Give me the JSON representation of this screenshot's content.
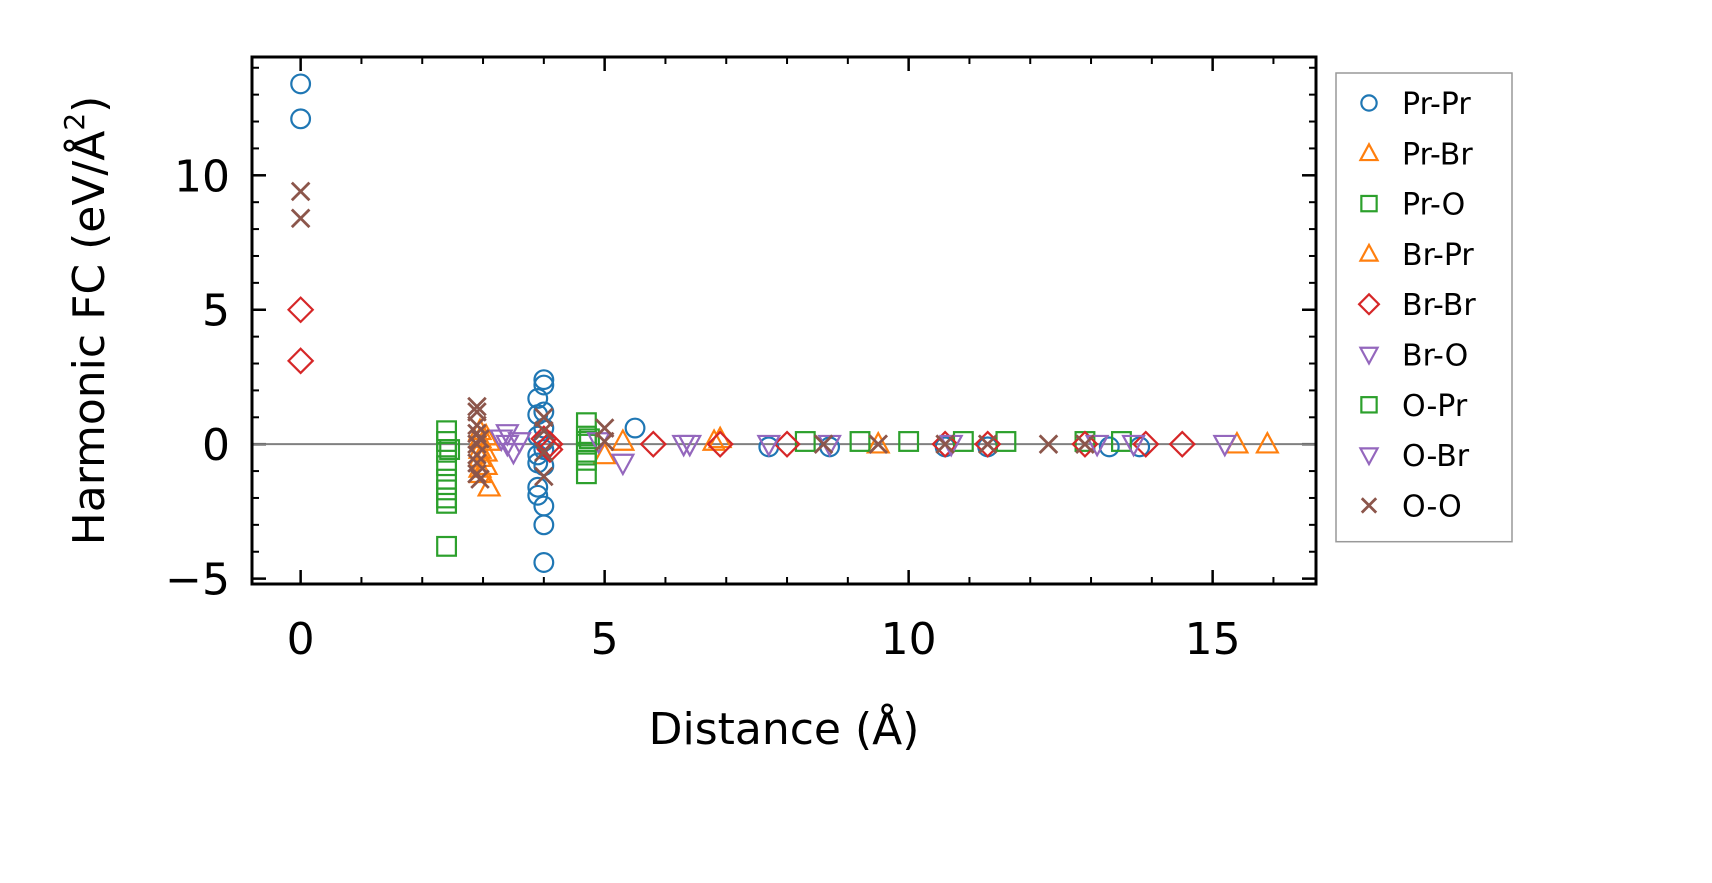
{
  "chart_data": {
    "type": "scatter",
    "xlabel": "Distance (Å)",
    "ylabel": "Harmonic FC (eV/Å²)",
    "ylabel_main": "Harmonic FC (eV/Å",
    "ylabel_sup": "2",
    "ylabel_end": ")",
    "xlim": [
      -0.8,
      16.7
    ],
    "ylim": [
      -5.2,
      14.4
    ],
    "xticks": [
      0,
      5,
      10,
      15
    ],
    "xtick_labels": [
      "0",
      "5",
      "10",
      "15"
    ],
    "yticks": [
      -5,
      0,
      5,
      10
    ],
    "ytick_labels": [
      "−5",
      "0",
      "5",
      "10"
    ],
    "grid": false,
    "zero_line": true,
    "legend_position": "outside-right",
    "series": [
      {
        "name": "Pr-Pr",
        "marker": "circle",
        "color": "#1f77b4",
        "x": [
          0,
          0,
          3.9,
          3.9,
          3.9,
          3.9,
          3.9,
          3.9,
          3.9,
          4.0,
          4.0,
          4.0,
          4.0,
          4.0,
          4.0,
          4.0,
          4.0,
          4.0,
          4.0,
          5.5,
          7.7,
          8.7,
          10.6,
          11.3,
          13.3,
          13.8
        ],
        "y": [
          13.4,
          12.1,
          1.7,
          1.1,
          0.3,
          -0.4,
          -0.7,
          -1.6,
          -1.9,
          2.4,
          2.2,
          1.2,
          0.6,
          -0.2,
          -0.8,
          -2.3,
          -3.0,
          -4.4,
          0.1,
          0.6,
          -0.1,
          -0.1,
          -0.1,
          -0.1,
          -0.1,
          -0.1
        ]
      },
      {
        "name": "Pr-Br",
        "marker": "triangle-up",
        "color": "#ff7f0e",
        "x": [
          2.95,
          2.95,
          2.95,
          2.95,
          2.95,
          2.95,
          3.1,
          3.1,
          5.0,
          5.3,
          6.8,
          9.5,
          15.4,
          15.9
        ],
        "y": [
          0.5,
          0.2,
          -0.2,
          -0.5,
          -0.9,
          -1.1,
          -1.6,
          0.1,
          -0.4,
          0.1,
          0.1,
          0.0,
          0.0,
          0.0
        ]
      },
      {
        "name": "Pr-O",
        "marker": "square",
        "color": "#2ca02c",
        "x": [
          2.4,
          2.4,
          2.4,
          2.4,
          2.4,
          2.4,
          2.4,
          2.4,
          2.4,
          4.7,
          4.7,
          4.7,
          4.7,
          4.7,
          4.7,
          8.3,
          9.2,
          10.0,
          10.9,
          11.6,
          12.9,
          13.5
        ],
        "y": [
          0.5,
          0.1,
          -0.3,
          -0.8,
          -1.3,
          -1.7,
          -2.0,
          -2.2,
          -3.8,
          0.8,
          0.3,
          0.0,
          -0.3,
          -0.6,
          -1.1,
          0.1,
          0.1,
          0.1,
          0.1,
          0.1,
          0.1,
          0.1
        ]
      },
      {
        "name": "Br-Pr",
        "marker": "triangle-up",
        "color": "#ff7f0e",
        "x": [
          3.05,
          3.05,
          3.05,
          6.9
        ],
        "y": [
          0.3,
          -0.3,
          -0.8,
          0.2
        ]
      },
      {
        "name": "Br-Br",
        "marker": "diamond",
        "color": "#d62728",
        "x": [
          0,
          0,
          4.0,
          4.1,
          4.1,
          5.8,
          6.9,
          8.0,
          10.6,
          11.3,
          12.9,
          13.9,
          14.5
        ],
        "y": [
          5.0,
          3.1,
          0.2,
          0.0,
          -0.2,
          0.0,
          0.0,
          0.0,
          0.0,
          0.0,
          0.0,
          0.0,
          0.0
        ]
      },
      {
        "name": "Br-O",
        "marker": "triangle-down",
        "color": "#9467bd",
        "x": [
          3.4,
          3.4,
          3.5,
          3.6,
          4.9,
          5.3,
          6.4,
          7.7,
          8.7
        ],
        "y": [
          0.4,
          0.0,
          -0.3,
          0.1,
          0.1,
          -0.7,
          0.0,
          0.0,
          0.0
        ]
      },
      {
        "name": "O-Pr",
        "marker": "square",
        "color": "#2ca02c",
        "x": [
          2.45,
          4.75
        ],
        "y": [
          -0.2,
          0.2
        ]
      },
      {
        "name": "O-Br",
        "marker": "triangle-down",
        "color": "#9467bd",
        "x": [
          3.3,
          6.3,
          10.7,
          13.1,
          13.7,
          15.2
        ],
        "y": [
          0.2,
          0.0,
          0.0,
          0.0,
          0.0,
          0.0
        ]
      },
      {
        "name": "O-O",
        "marker": "x",
        "color": "#8c564b",
        "x": [
          0,
          0,
          2.9,
          2.9,
          2.9,
          2.9,
          2.9,
          2.9,
          2.9,
          2.9,
          2.95,
          2.95,
          4.0,
          4.0,
          4.0,
          4.0,
          5.0,
          5.0,
          8.6,
          9.5,
          10.6,
          11.3,
          12.3,
          12.9
        ],
        "y": [
          9.4,
          8.4,
          1.4,
          1.2,
          0.7,
          0.4,
          0.0,
          -0.4,
          -0.7,
          -1.1,
          -1.3,
          0.2,
          1.0,
          0.5,
          -0.3,
          -1.2,
          0.6,
          0.1,
          0.0,
          0.0,
          0.0,
          0.0,
          0.0,
          0.0
        ]
      }
    ]
  }
}
